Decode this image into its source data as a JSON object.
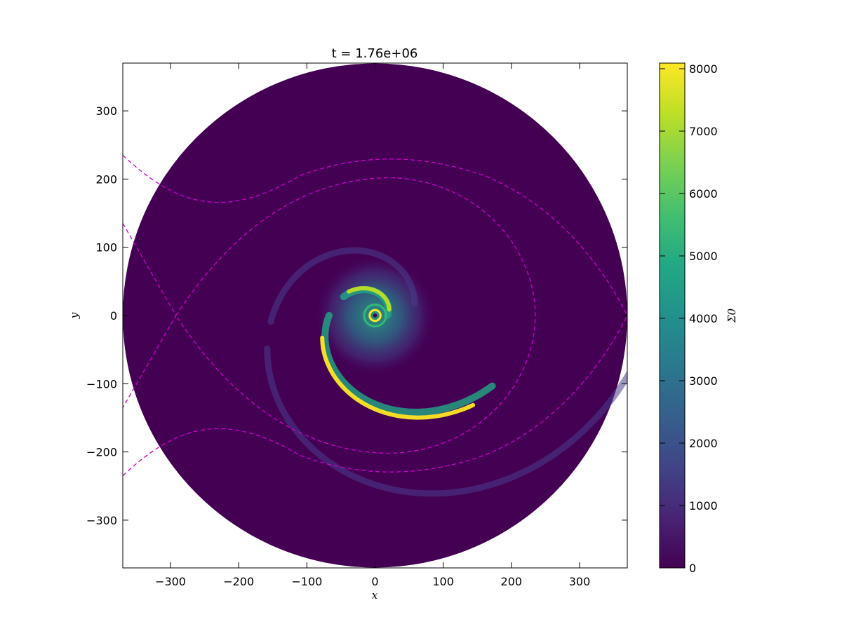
{
  "chart_data": {
    "type": "heatmap",
    "title": "t = 1.76e+06",
    "xlabel": "x",
    "ylabel": "y",
    "xlim": [
      -370,
      370
    ],
    "ylim": [
      -370,
      370
    ],
    "xticks": [
      -300,
      -200,
      -100,
      0,
      100,
      200,
      300
    ],
    "yticks": [
      -300,
      -200,
      -100,
      0,
      100,
      200,
      300
    ],
    "disk_radius": 370,
    "colormap": "viridis",
    "colorbar": {
      "label": "Σ0",
      "range": [
        0,
        8000
      ],
      "ticks": [
        0,
        1000,
        2000,
        3000,
        4000,
        5000,
        6000,
        7000,
        8000
      ]
    },
    "contour_color": "#cc00cc",
    "contour_style": "dashed",
    "grid": false
  }
}
